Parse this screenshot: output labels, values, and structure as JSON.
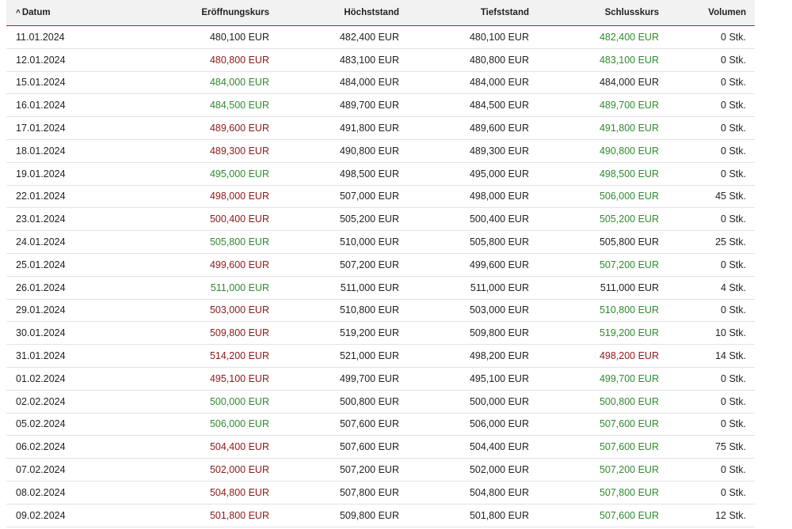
{
  "colors": {
    "up": "#2e8b2e",
    "down": "#8b1a1a",
    "flat": "#222222",
    "header_rule": "#7b2d5a"
  },
  "sort_icon": "caret-up-icon",
  "headers": [
    "Datum",
    "Eröffnungskurs",
    "Höchststand",
    "Tiefststand",
    "Schlusskurs",
    "Volumen"
  ],
  "rows": [
    {
      "date": "11.01.2024",
      "open": "480,100 EUR",
      "open_trend": "flat",
      "high": "482,400 EUR",
      "low": "480,100 EUR",
      "close": "482,400 EUR",
      "close_trend": "up",
      "volume": "0 Stk."
    },
    {
      "date": "12.01.2024",
      "open": "480,800 EUR",
      "open_trend": "down",
      "high": "483,100 EUR",
      "low": "480,800 EUR",
      "close": "483,100 EUR",
      "close_trend": "up",
      "volume": "0 Stk."
    },
    {
      "date": "15.01.2024",
      "open": "484,000 EUR",
      "open_trend": "up",
      "high": "484,000 EUR",
      "low": "484,000 EUR",
      "close": "484,000 EUR",
      "close_trend": "flat",
      "volume": "0 Stk."
    },
    {
      "date": "16.01.2024",
      "open": "484,500 EUR",
      "open_trend": "up",
      "high": "489,700 EUR",
      "low": "484,500 EUR",
      "close": "489,700 EUR",
      "close_trend": "up",
      "volume": "0 Stk."
    },
    {
      "date": "17.01.2024",
      "open": "489,600 EUR",
      "open_trend": "down",
      "high": "491,800 EUR",
      "low": "489,600 EUR",
      "close": "491,800 EUR",
      "close_trend": "up",
      "volume": "0 Stk."
    },
    {
      "date": "18.01.2024",
      "open": "489,300 EUR",
      "open_trend": "down",
      "high": "490,800 EUR",
      "low": "489,300 EUR",
      "close": "490,800 EUR",
      "close_trend": "up",
      "volume": "0 Stk."
    },
    {
      "date": "19.01.2024",
      "open": "495,000 EUR",
      "open_trend": "up",
      "high": "498,500 EUR",
      "low": "495,000 EUR",
      "close": "498,500 EUR",
      "close_trend": "up",
      "volume": "0 Stk."
    },
    {
      "date": "22.01.2024",
      "open": "498,000 EUR",
      "open_trend": "down",
      "high": "507,000 EUR",
      "low": "498,000 EUR",
      "close": "506,000 EUR",
      "close_trend": "up",
      "volume": "45 Stk."
    },
    {
      "date": "23.01.2024",
      "open": "500,400 EUR",
      "open_trend": "down",
      "high": "505,200 EUR",
      "low": "500,400 EUR",
      "close": "505,200 EUR",
      "close_trend": "up",
      "volume": "0 Stk."
    },
    {
      "date": "24.01.2024",
      "open": "505,800 EUR",
      "open_trend": "up",
      "high": "510,000 EUR",
      "low": "505,800 EUR",
      "close": "505,800 EUR",
      "close_trend": "flat",
      "volume": "25 Stk."
    },
    {
      "date": "25.01.2024",
      "open": "499,600 EUR",
      "open_trend": "down",
      "high": "507,200 EUR",
      "low": "499,600 EUR",
      "close": "507,200 EUR",
      "close_trend": "up",
      "volume": "0 Stk."
    },
    {
      "date": "26.01.2024",
      "open": "511,000 EUR",
      "open_trend": "up",
      "high": "511,000 EUR",
      "low": "511,000 EUR",
      "close": "511,000 EUR",
      "close_trend": "flat",
      "volume": "4 Stk."
    },
    {
      "date": "29.01.2024",
      "open": "503,000 EUR",
      "open_trend": "down",
      "high": "510,800 EUR",
      "low": "503,000 EUR",
      "close": "510,800 EUR",
      "close_trend": "up",
      "volume": "0 Stk."
    },
    {
      "date": "30.01.2024",
      "open": "509,800 EUR",
      "open_trend": "down",
      "high": "519,200 EUR",
      "low": "509,800 EUR",
      "close": "519,200 EUR",
      "close_trend": "up",
      "volume": "10 Stk."
    },
    {
      "date": "31.01.2024",
      "open": "514,200 EUR",
      "open_trend": "down",
      "high": "521,000 EUR",
      "low": "498,200 EUR",
      "close": "498,200 EUR",
      "close_trend": "down",
      "volume": "14 Stk."
    },
    {
      "date": "01.02.2024",
      "open": "495,100 EUR",
      "open_trend": "down",
      "high": "499,700 EUR",
      "low": "495,100 EUR",
      "close": "499,700 EUR",
      "close_trend": "up",
      "volume": "0 Stk."
    },
    {
      "date": "02.02.2024",
      "open": "500,000 EUR",
      "open_trend": "up",
      "high": "500,800 EUR",
      "low": "500,000 EUR",
      "close": "500,800 EUR",
      "close_trend": "up",
      "volume": "0 Stk."
    },
    {
      "date": "05.02.2024",
      "open": "506,000 EUR",
      "open_trend": "up",
      "high": "507,600 EUR",
      "low": "506,000 EUR",
      "close": "507,600 EUR",
      "close_trend": "up",
      "volume": "0 Stk."
    },
    {
      "date": "06.02.2024",
      "open": "504,400 EUR",
      "open_trend": "down",
      "high": "507,600 EUR",
      "low": "504,400 EUR",
      "close": "507,600 EUR",
      "close_trend": "up",
      "volume": "75 Stk."
    },
    {
      "date": "07.02.2024",
      "open": "502,000 EUR",
      "open_trend": "down",
      "high": "507,200 EUR",
      "low": "502,000 EUR",
      "close": "507,200 EUR",
      "close_trend": "up",
      "volume": "0 Stk."
    },
    {
      "date": "08.02.2024",
      "open": "504,800 EUR",
      "open_trend": "down",
      "high": "507,800 EUR",
      "low": "504,800 EUR",
      "close": "507,800 EUR",
      "close_trend": "up",
      "volume": "0 Stk."
    },
    {
      "date": "09.02.2024",
      "open": "501,800 EUR",
      "open_trend": "down",
      "high": "509,800 EUR",
      "low": "501,800 EUR",
      "close": "507,600 EUR",
      "close_trend": "up",
      "volume": "12 Stk."
    }
  ]
}
